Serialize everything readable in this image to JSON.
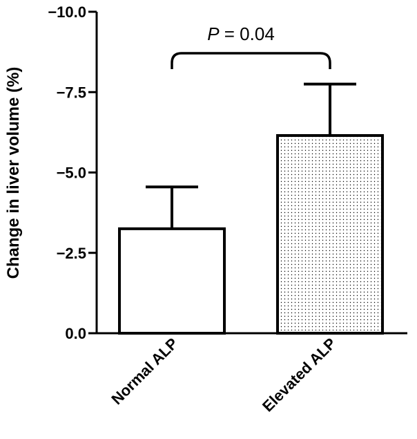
{
  "chart_data": {
    "type": "bar",
    "title": "",
    "xlabel": "",
    "ylabel": "Change in liver volume (%)",
    "categories": [
      "Normal ALP",
      "Elevated ALP"
    ],
    "series": [
      {
        "values": [
          -3.25,
          -6.15
        ],
        "error_upper": [
          1.3,
          1.6
        ]
      }
    ],
    "bar_fill": [
      "plain",
      "dotted"
    ],
    "ylim": [
      0.0,
      -10.0
    ],
    "y_axis_inverted": true,
    "yticks": [
      0.0,
      -2.5,
      -5.0,
      -7.5,
      -10.0
    ],
    "ytick_labels": [
      "0.0",
      "−2.5",
      "−5.0",
      "−7.5",
      "−10.0"
    ],
    "grid": false,
    "legend": "none",
    "annotation": {
      "p_prefix": "P",
      "p_rest": " = 0.04",
      "between": [
        "Normal ALP",
        "Elevated ALP"
      ]
    },
    "colors": {
      "bar_stroke": "#000000",
      "bar_fill": "#ffffff",
      "dots": "#000000"
    }
  }
}
